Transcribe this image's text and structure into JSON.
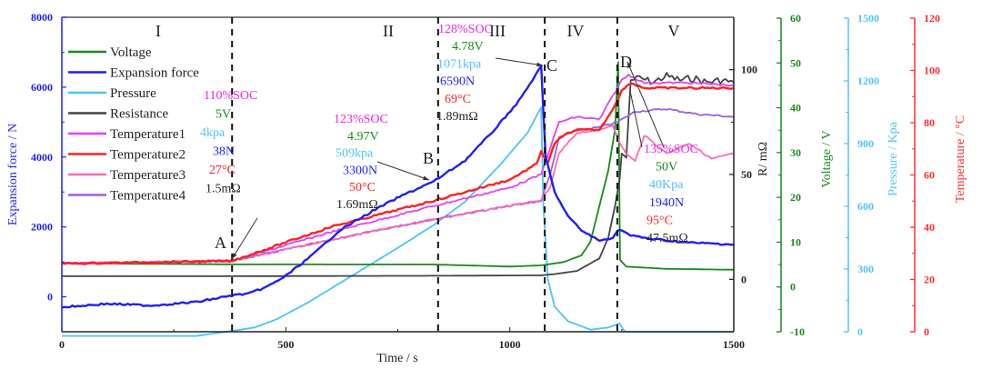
{
  "chart_data": {
    "type": "line",
    "title": "",
    "xlabel": "Time / s",
    "xlim": [
      0,
      1500
    ],
    "xticks": [
      0,
      500,
      1000,
      1500
    ],
    "grid": false,
    "legend_position": "top-left",
    "axes": {
      "force": {
        "label": "Expansion force / N",
        "range": [
          -1000,
          8000
        ],
        "ticks": [
          0,
          2000,
          4000,
          6000,
          8000
        ],
        "color": "#1f1ff5"
      },
      "resistance": {
        "label": "R/ mΩ",
        "range": [
          -25,
          125
        ],
        "ticks": [
          0,
          50,
          100
        ],
        "color": "#222222"
      },
      "voltage": {
        "label": "Voltage / V",
        "range": [
          -10,
          60
        ],
        "ticks": [
          -10,
          0,
          10,
          20,
          30,
          40,
          50,
          60
        ],
        "color": "#1a8a1a"
      },
      "pressure": {
        "label": "Pressure / Kpa",
        "range": [
          0,
          1500
        ],
        "ticks": [
          0,
          300,
          600,
          900,
          1200,
          1500
        ],
        "color": "#4fc3f7"
      },
      "temperature": {
        "label": "Temperature / °C",
        "range": [
          0,
          120
        ],
        "ticks": [
          0,
          20,
          40,
          60,
          80,
          100,
          120
        ],
        "color": "#ff2b2b"
      }
    },
    "series": [
      {
        "name": "Voltage",
        "axis": "voltage",
        "color": "#1a8a1a",
        "x": [
          0,
          200,
          380,
          600,
          830,
          1000,
          1070,
          1120,
          1160,
          1180,
          1200,
          1220,
          1235,
          1242,
          1246,
          1260,
          1350,
          1500
        ],
        "y": [
          5.2,
          5.1,
          5.0,
          4.98,
          4.97,
          4.5,
          4.78,
          5.5,
          7,
          10,
          18,
          26,
          35,
          50,
          6,
          4.5,
          4.0,
          3.8
        ]
      },
      {
        "name": "Expansion force",
        "axis": "force",
        "color": "#1f1ff5",
        "x": [
          0,
          100,
          200,
          300,
          380,
          420,
          460,
          500,
          560,
          620,
          700,
          760,
          830,
          900,
          960,
          1020,
          1070,
          1080,
          1100,
          1130,
          1160,
          1200,
          1230,
          1245,
          1270,
          1320,
          1400,
          1500
        ],
        "y": [
          -300,
          -200,
          -250,
          -150,
          38,
          100,
          300,
          600,
          1200,
          1900,
          2500,
          2900,
          3300,
          3900,
          4700,
          5600,
          6590,
          4000,
          3000,
          2300,
          1900,
          1600,
          1700,
          1940,
          1750,
          1650,
          1550,
          1500
        ]
      },
      {
        "name": "Pressure",
        "axis": "pressure",
        "color": "#4fc3f7",
        "x": [
          0,
          300,
          380,
          430,
          480,
          550,
          650,
          750,
          830,
          900,
          980,
          1040,
          1070,
          1075,
          1085,
          1100,
          1130,
          1180,
          1220,
          1245,
          1255,
          1260,
          1500
        ],
        "y": [
          -20,
          -20,
          4,
          20,
          60,
          140,
          270,
          400,
          509,
          620,
          800,
          950,
          1071,
          600,
          250,
          120,
          50,
          10,
          20,
          40,
          5,
          0,
          0
        ]
      },
      {
        "name": "Resistance",
        "axis": "resistance",
        "color": "#444444",
        "x": [
          0,
          380,
          830,
          1070,
          1100,
          1150,
          1200,
          1220,
          1235,
          1245,
          1250,
          1260,
          1270,
          1290,
          1320,
          1350,
          1380,
          1410,
          1440,
          1470,
          1500
        ],
        "y": [
          1.5,
          1.5,
          1.69,
          1.89,
          2.5,
          4,
          10,
          20,
          35,
          47.5,
          60,
          58,
          95,
          96,
          94,
          97,
          95,
          96,
          94,
          95,
          94
        ]
      },
      {
        "name": "Temperature1",
        "axis": "temperature",
        "color": "#e040fb",
        "x": [
          0,
          380,
          600,
          830,
          1000,
          1070,
          1090,
          1110,
          1150,
          1200,
          1230,
          1250,
          1265,
          1300,
          1400,
          1500
        ],
        "y": [
          26,
          27,
          38,
          48,
          55,
          60,
          70,
          80,
          82,
          81,
          90,
          96,
          98,
          95,
          95,
          94
        ]
      },
      {
        "name": "Temperature2",
        "axis": "temperature",
        "color": "#ff2020",
        "x": [
          0,
          200,
          380,
          600,
          830,
          1000,
          1060,
          1070,
          1085,
          1100,
          1130,
          1160,
          1200,
          1230,
          1250,
          1270,
          1300,
          1400,
          1500
        ],
        "y": [
          26,
          26.5,
          27,
          40,
          50,
          58,
          64,
          69,
          64,
          72,
          76,
          77,
          77,
          85,
          92,
          95,
          93,
          93,
          93
        ]
      },
      {
        "name": "Temperature3",
        "axis": "temperature",
        "color": "#ff69b4",
        "x": [
          0,
          380,
          600,
          830,
          1000,
          1070,
          1090,
          1110,
          1150,
          1200,
          1230,
          1245,
          1260,
          1280,
          1300,
          1350,
          1400,
          1450,
          1500
        ],
        "y": [
          26,
          27,
          35,
          43,
          48,
          50,
          55,
          68,
          76,
          77,
          79,
          72,
          68,
          65,
          75,
          68,
          72,
          66,
          68
        ]
      },
      {
        "name": "Temperature4",
        "axis": "temperature",
        "color": "#9c5fe0",
        "x": [
          0,
          380,
          600,
          830,
          1000,
          1070,
          1090,
          1110,
          1150,
          1200,
          1240,
          1280,
          1350,
          1420,
          1500
        ],
        "y": [
          26,
          27,
          35,
          43,
          48,
          50,
          60,
          74,
          77,
          78,
          80,
          84,
          85,
          83,
          82
        ]
      }
    ],
    "regions": [
      {
        "label": "I"
      },
      {
        "label": "II"
      },
      {
        "label": "III"
      },
      {
        "label": "IV"
      },
      {
        "label": "V"
      }
    ],
    "region_boundaries_s": [
      380,
      840,
      1078,
      1240
    ],
    "points": [
      {
        "label": "A",
        "time": 380,
        "soc": "110%SOC",
        "voltage": "5V",
        "pressure": "4kpa",
        "force": "38N",
        "temperature": "27°C",
        "resistance": "1.5mΩ"
      },
      {
        "label": "B",
        "time": 830,
        "soc": "123%SOC",
        "voltage": "4.97V",
        "pressure": "509kpa",
        "force": "3300N",
        "temperature": "50°C",
        "resistance": "1.69mΩ"
      },
      {
        "label": "C",
        "time": 1070,
        "soc": "128%SOC",
        "voltage": "4.78V",
        "pressure": "1071kpa",
        "force": "6590N",
        "temperature": "69°C",
        "resistance": "1.89mΩ"
      },
      {
        "label": "D",
        "time": 1245,
        "soc": "135%SOC",
        "voltage": "50V",
        "pressure": "40Kpa",
        "force": "1940N",
        "temperature": "95°C",
        "resistance": "47.5mΩ"
      }
    ],
    "annotation_colors": {
      "soc": "#ee22ee",
      "voltage": "#1a8a1a",
      "pressure": "#4fc3f7",
      "force": "#1f1ff5",
      "temperature": "#ff2020",
      "resistance": "#222222"
    }
  }
}
